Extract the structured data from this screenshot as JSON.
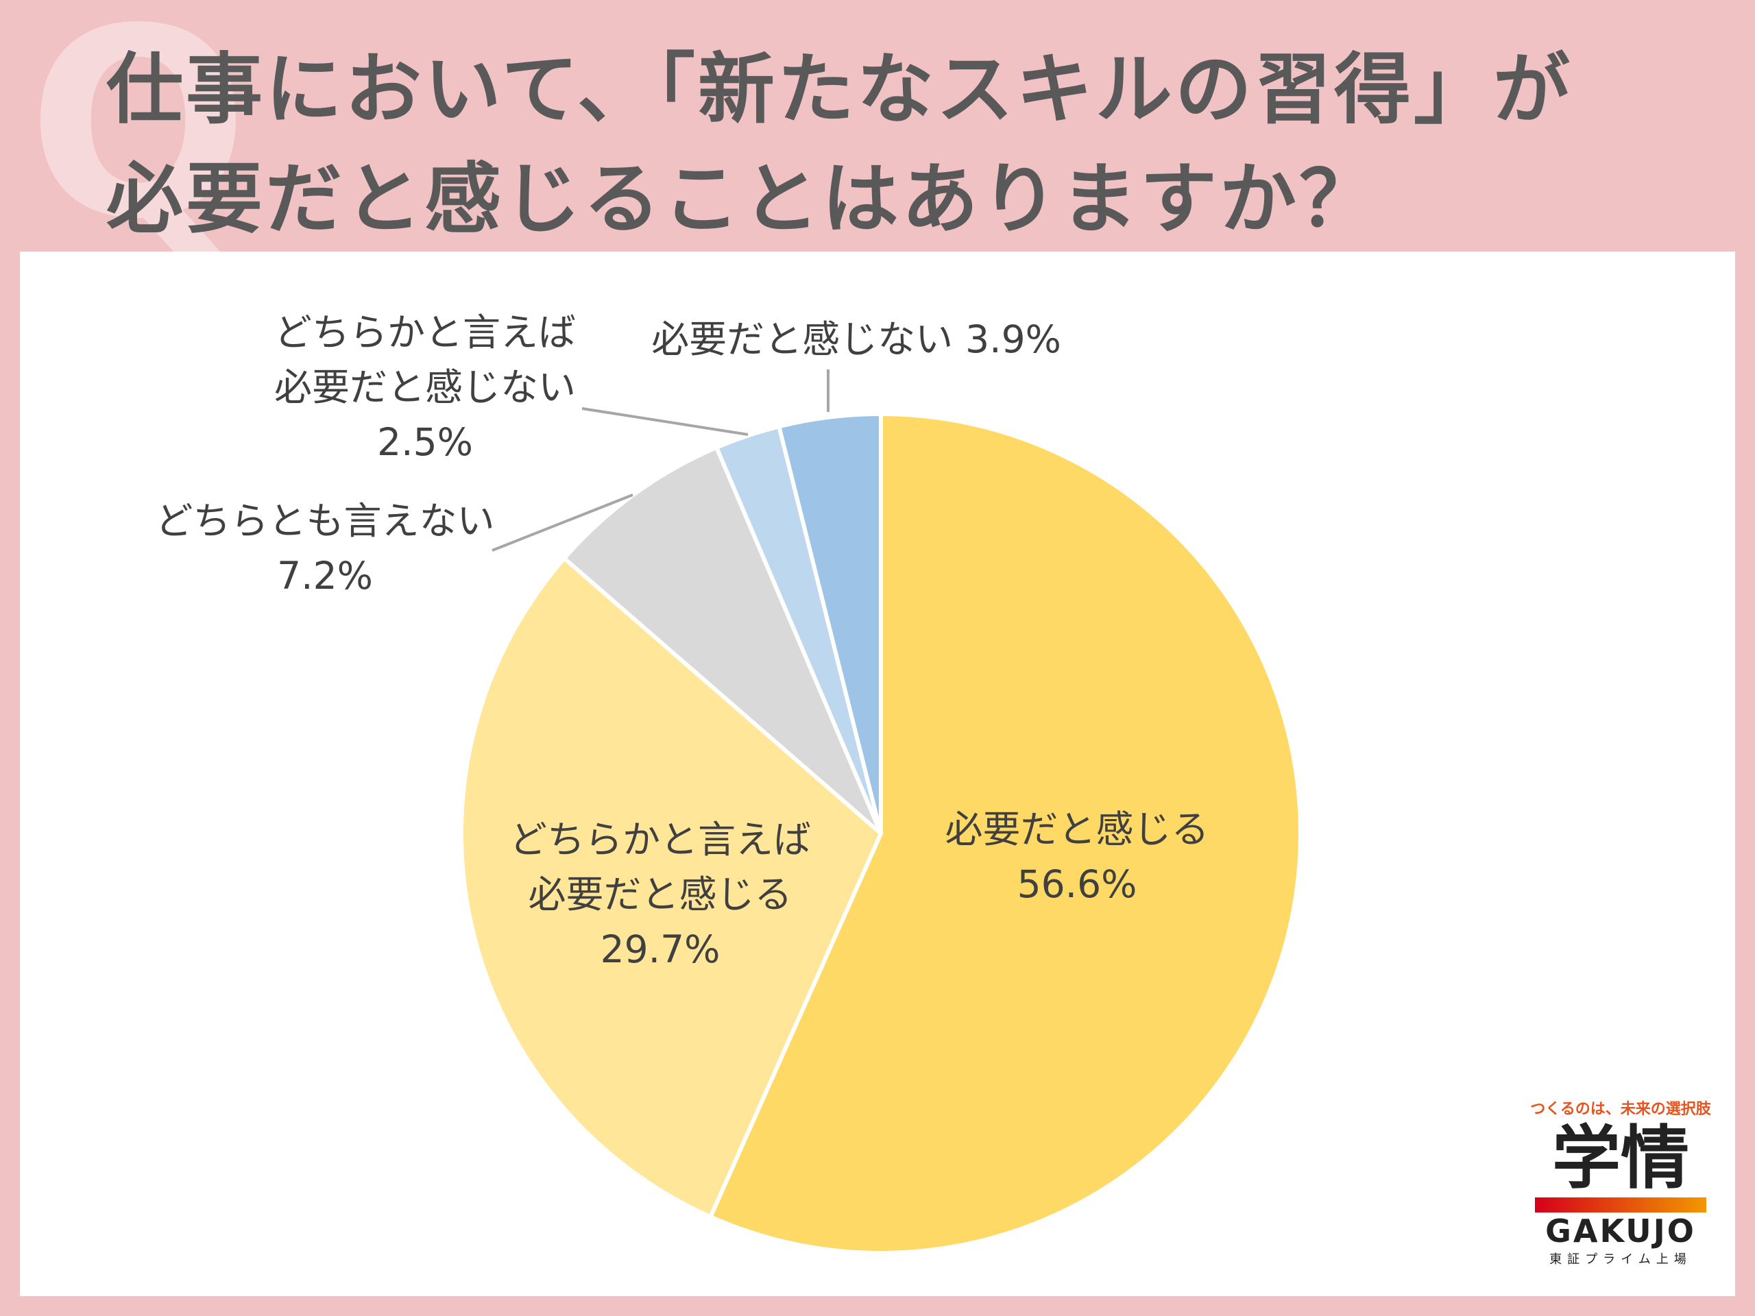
{
  "badge": "Q",
  "chart_data": {
    "type": "pie",
    "title": [
      "仕事において、「新たなスキルの習得」が",
      "必要だと感じることはありますか？"
    ],
    "categories": [
      "必要だと感じる",
      "どちらかと言えば必要だと感じる",
      "どちらとも言えない",
      "どちらかと言えば必要だと感じない",
      "必要だと感じない"
    ],
    "values": [
      56.6,
      29.7,
      7.2,
      2.5,
      3.9
    ],
    "value_labels": [
      "56.6%",
      "29.7%",
      "7.2%",
      "2.5%",
      "3.9%"
    ],
    "colors": [
      "#FFD966",
      "#FFE699",
      "#D9D9D9",
      "#BDD7EE",
      "#9DC3E6"
    ]
  },
  "logo": {
    "tagline": "つくるのは、未来の選択肢",
    "name": "学情",
    "latin": "GAKUJO",
    "note": "東証プライム上場"
  }
}
